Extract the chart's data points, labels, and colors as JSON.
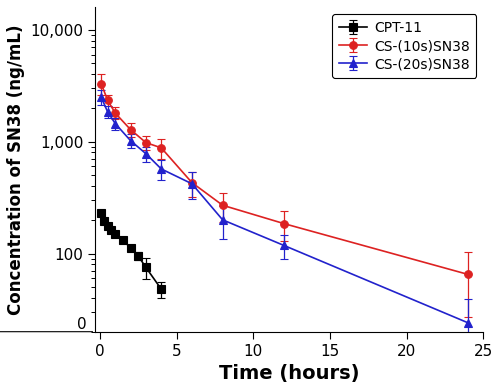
{
  "title": "",
  "xlabel": "Time (hours)",
  "ylabel": "Concentration of SN38 (ng/mL)",
  "xlim": [
    -0.3,
    25
  ],
  "xticks": [
    0,
    5,
    10,
    15,
    20,
    25
  ],
  "cpt11": {
    "x": [
      0.083,
      0.25,
      0.5,
      0.75,
      1.0,
      1.5,
      2.0,
      2.5,
      3.0,
      4.0
    ],
    "y": [
      230,
      195,
      175,
      162,
      148,
      132,
      112,
      95,
      75,
      48
    ],
    "yerr": [
      12,
      10,
      8,
      7,
      7,
      7,
      6,
      8,
      16,
      8
    ],
    "color": "#000000",
    "label": "CPT-11",
    "marker": "s",
    "linestyle": "-"
  },
  "cs10": {
    "x": [
      0.083,
      0.5,
      1.0,
      2.0,
      3.0,
      4.0,
      6.0,
      8.0,
      12.0,
      24.0
    ],
    "y": [
      3300,
      2350,
      1800,
      1280,
      980,
      880,
      430,
      270,
      185,
      65
    ],
    "yerr": [
      700,
      280,
      220,
      180,
      140,
      180,
      110,
      80,
      55,
      38
    ],
    "color": "#dd2222",
    "label": "CS-(10s)SN38",
    "marker": "o",
    "linestyle": "-"
  },
  "cs20": {
    "x": [
      0.083,
      0.5,
      1.0,
      2.0,
      3.0,
      4.0,
      6.0,
      8.0,
      12.0,
      24.0
    ],
    "y": [
      2500,
      1850,
      1450,
      1020,
      780,
      570,
      420,
      200,
      118,
      24
    ],
    "yerr": [
      380,
      230,
      180,
      150,
      120,
      120,
      115,
      65,
      28,
      15
    ],
    "color": "#2222cc",
    "label": "CS-(20s)SN38",
    "marker": "^",
    "linestyle": "-"
  },
  "legend_loc": "upper right",
  "xlabel_fontsize": 14,
  "ylabel_fontsize": 12,
  "tick_fontsize": 11,
  "legend_fontsize": 10
}
